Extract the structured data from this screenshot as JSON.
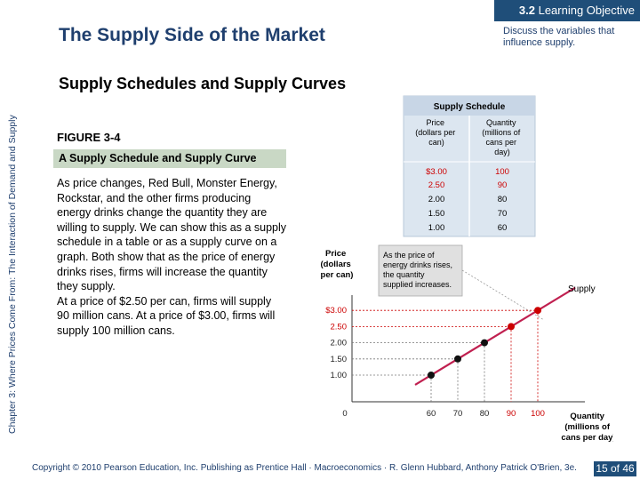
{
  "header": {
    "objective_tab_number": "3.2",
    "objective_tab_label": "Learning Objective",
    "slide_title": "The Supply Side of the Market",
    "objective_text": "Discuss the variables that influence supply."
  },
  "section_title": "Supply Schedules and Supply Curves",
  "side_label": "Chapter 3: Where Prices Come From: The Interaction of Demand and Supply",
  "figure": {
    "label": "FIGURE 3-4",
    "caption": "A Supply Schedule and Supply Curve",
    "body_paragraphs": [
      "As price changes, Red Bull, Monster Energy, Rockstar, and the other firms producing energy drinks change the quantity they are willing to supply. We can show this as a supply schedule in a table or as a supply curve on a graph. Both show that as the price of energy drinks rises, firms will increase the quantity they supply.",
      "At a price of $2.50 per can, firms will supply 90 million cans. At a price of $3.00, firms will supply 100 million cans."
    ]
  },
  "schedule": {
    "title": "Supply Schedule",
    "col_price": [
      "Price",
      "(dollars per",
      "can)"
    ],
    "col_quantity": [
      "Quantity",
      "(millions of",
      "cans per",
      "day)"
    ],
    "rows": [
      {
        "price": "$3.00",
        "quantity": "100"
      },
      {
        "price": "2.50",
        "quantity": "90"
      },
      {
        "price": "2.00",
        "quantity": "80"
      },
      {
        "price": "1.50",
        "quantity": "70"
      },
      {
        "price": "1.00",
        "quantity": "60"
      }
    ]
  },
  "chart_data": {
    "type": "line",
    "x": [
      60,
      70,
      80,
      90,
      100
    ],
    "series": [
      {
        "name": "Supply",
        "values": [
          1.0,
          1.5,
          2.0,
          2.5,
          3.0
        ]
      }
    ],
    "x_ticks": [
      "0",
      "60",
      "70",
      "80",
      "90",
      "100"
    ],
    "y_ticks": [
      "$3.00",
      "2.50",
      "2.00",
      "1.50",
      "1.00"
    ],
    "ylabel": [
      "Price",
      "(dollars",
      "per can)"
    ],
    "xlabel": [
      "Quantity",
      "(millions of",
      "cans per day)"
    ],
    "annotation": [
      "As the price of",
      "energy drinks rises,",
      "the quantity",
      "supplied increases."
    ],
    "curve_label": "Supply",
    "highlight_color": "#cc0000",
    "curve_color": "#c02050"
  },
  "footer": {
    "copyright": "Copyright © 2010 Pearson Education, Inc. Publishing as Prentice Hall · Macroeconomics · R. Glenn Hubbard, Anthony Patrick O'Brien, 3e.",
    "page": "15 of 46"
  }
}
